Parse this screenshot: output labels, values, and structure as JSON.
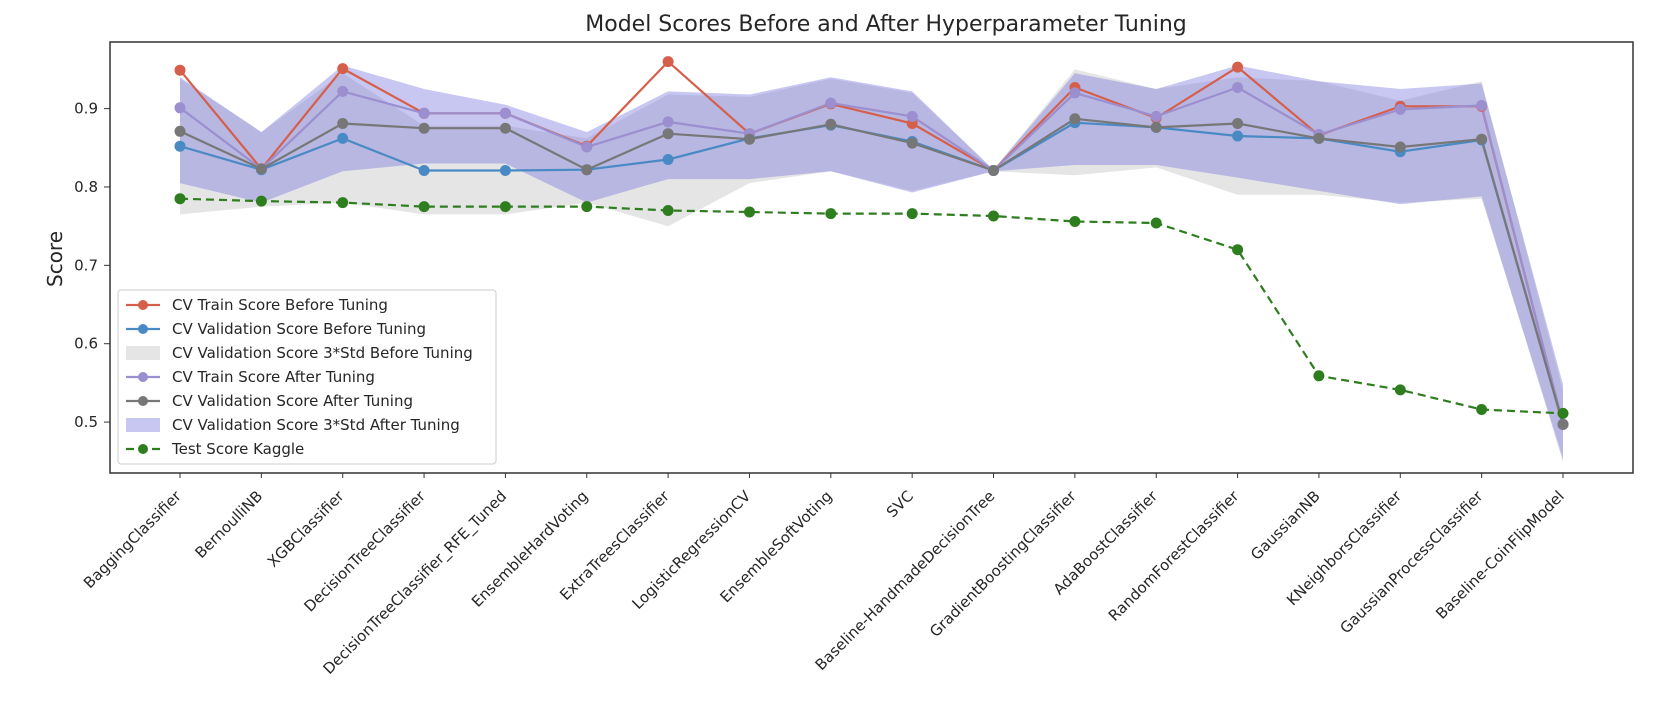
{
  "chart_data": {
    "type": "line",
    "title": "Model Scores Before and After Hyperparameter Tuning",
    "xlabel": "",
    "ylabel": "Score",
    "ylim": [
      0.435,
      0.985
    ],
    "yticks": [
      0.5,
      0.6,
      0.7,
      0.8,
      0.9
    ],
    "grid": false,
    "legend_position": "lower-left",
    "categories": [
      "BaggingClassifier",
      "BernoulliNB",
      "XGBClassifier",
      "DecisionTreeClassifier",
      "DecisionTreeClassifier_RFE_Tuned",
      "EnsembleHardVoting",
      "ExtraTreesClassifier",
      "LogisticRegressionCV",
      "EnsembleSoftVoting",
      "SVC",
      "Baseline-HandmadeDecisionTree",
      "GradientBoostingClassifier",
      "AdaBoostClassifier",
      "RandomForestClassifier",
      "GaussianNB",
      "KNeighborsClassifier",
      "GaussianProcessClassifier",
      "Baseline-CoinFlipModel"
    ],
    "series": [
      {
        "name": "CV Train Score Before Tuning",
        "kind": "line",
        "color": "#d65f4b",
        "values": [
          0.949,
          0.823,
          0.951,
          0.894,
          0.894,
          0.852,
          0.96,
          0.868,
          0.906,
          0.881,
          0.821,
          0.927,
          0.888,
          0.953,
          0.866,
          0.903,
          0.903,
          0.497
        ]
      },
      {
        "name": "CV Validation Score Before Tuning",
        "kind": "line",
        "color": "#4a8ac4",
        "values": [
          0.852,
          0.822,
          0.862,
          0.821,
          0.821,
          0.822,
          0.835,
          0.862,
          0.879,
          0.858,
          0.821,
          0.882,
          0.876,
          0.865,
          0.862,
          0.845,
          0.86,
          0.497
        ]
      },
      {
        "name": "CV Validation Score 3*Std Before Tuning",
        "kind": "band",
        "color": "#cfcfcf",
        "lower": [
          0.765,
          0.775,
          0.78,
          0.765,
          0.765,
          0.78,
          0.75,
          0.805,
          0.82,
          0.795,
          0.82,
          0.815,
          0.825,
          0.79,
          0.79,
          0.78,
          0.785,
          0.455
        ],
        "upper": [
          0.938,
          0.87,
          0.945,
          0.878,
          0.878,
          0.862,
          0.918,
          0.915,
          0.938,
          0.92,
          0.822,
          0.95,
          0.925,
          0.94,
          0.935,
          0.91,
          0.935,
          0.54
        ]
      },
      {
        "name": "CV Train Score After Tuning",
        "kind": "line",
        "color": "#9b8fcf",
        "values": [
          0.901,
          0.823,
          0.922,
          0.894,
          0.894,
          0.851,
          0.883,
          0.868,
          0.907,
          0.89,
          0.821,
          0.92,
          0.89,
          0.927,
          0.867,
          0.899,
          0.904,
          0.497
        ]
      },
      {
        "name": "CV Validation Score After Tuning",
        "kind": "line",
        "color": "#777777",
        "values": [
          0.871,
          0.823,
          0.881,
          0.875,
          0.875,
          0.822,
          0.868,
          0.861,
          0.88,
          0.856,
          0.821,
          0.887,
          0.876,
          0.881,
          0.862,
          0.851,
          0.861,
          0.497
        ]
      },
      {
        "name": "CV Validation Score 3*Std After Tuning",
        "kind": "band",
        "color": "#6c6cdc",
        "lower": [
          0.805,
          0.78,
          0.82,
          0.83,
          0.83,
          0.78,
          0.81,
          0.81,
          0.82,
          0.793,
          0.82,
          0.828,
          0.828,
          0.812,
          0.795,
          0.778,
          0.788,
          0.45
        ],
        "upper": [
          0.94,
          0.87,
          0.955,
          0.925,
          0.905,
          0.87,
          0.922,
          0.918,
          0.94,
          0.922,
          0.822,
          0.945,
          0.925,
          0.955,
          0.935,
          0.925,
          0.932,
          0.548
        ]
      },
      {
        "name": "Test Score Kaggle",
        "kind": "dashed",
        "color": "#2e7d1f",
        "values": [
          0.785,
          0.782,
          0.78,
          0.775,
          0.775,
          0.775,
          0.77,
          0.768,
          0.766,
          0.766,
          0.763,
          0.756,
          0.754,
          0.72,
          0.559,
          0.541,
          0.516,
          0.511
        ]
      }
    ]
  }
}
